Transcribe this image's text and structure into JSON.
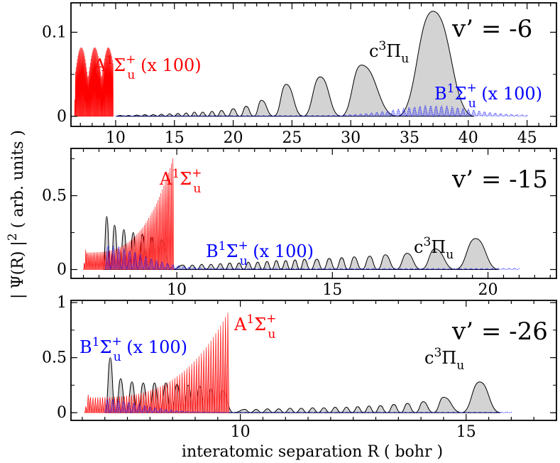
{
  "chart_data": {
    "type": "line",
    "xlabel": "interatomic separation R   ( bohr )",
    "ylabel": "| Ψ(R) |² ( arb. units )",
    "ylabel_parts": {
      "left": "| Ψ(R) |",
      "sup": "2",
      "right": " ( arb. units )"
    },
    "colors": {
      "c": "#000000",
      "cfill": "#d3d3d3",
      "A": "#ff0000",
      "B": "#0000ff"
    },
    "panels": [
      {
        "label": "v’ =  -6",
        "xlim": [
          6.2,
          47.5
        ],
        "ylim": [
          -0.012,
          0.135
        ],
        "xticks": [
          10,
          15,
          20,
          25,
          30,
          35,
          40,
          45
        ],
        "yticks": [
          0,
          0.1
        ],
        "ytick_labels": [
          "0",
          "0.1"
        ],
        "c_peaks": [
          [
            10.4,
            0.001
          ],
          [
            11.1,
            0.001
          ],
          [
            11.8,
            0.0015
          ],
          [
            12.5,
            0.002
          ],
          [
            13.2,
            0.002
          ],
          [
            13.9,
            0.0025
          ],
          [
            14.6,
            0.003
          ],
          [
            15.3,
            0.0035
          ],
          [
            16.0,
            0.004
          ],
          [
            16.7,
            0.005
          ],
          [
            17.4,
            0.005
          ],
          [
            18.2,
            0.006
          ],
          [
            19.0,
            0.007
          ],
          [
            20.0,
            0.009
          ],
          [
            21.1,
            0.012
          ],
          [
            22.4,
            0.019
          ],
          [
            24.5,
            0.038
          ],
          [
            27.4,
            0.047
          ],
          [
            30.9,
            0.061
          ],
          [
            37.0,
            0.125
          ]
        ],
        "A_range": [
          6.5,
          9.8
        ],
        "A_max": 0.082,
        "B_range": [
          10,
          45
        ],
        "B_max": 0.012,
        "annotations": {
          "c": {
            "base": "c",
            "sup": "3",
            "main": "Π",
            "sub": "u",
            "suffix": ""
          },
          "A": {
            "base": "A",
            "sup": "1",
            "main": "Σ",
            "sub": "u",
            "plus": "+",
            "suffix": " (x 100)"
          },
          "B": {
            "base": "B",
            "sup": "1",
            "main": "Σ",
            "sub": "u",
            "plus": "+",
            "suffix": " (x 100)"
          }
        }
      },
      {
        "label": "v’ =  -15",
        "xlim": [
          6.6,
          22.2
        ],
        "ylim": [
          -0.06,
          0.82
        ],
        "xticks": [
          10,
          15,
          20
        ],
        "yticks": [
          0,
          0.5
        ],
        "ytick_labels": [
          "0",
          "0.5"
        ],
        "c_peaks": [
          [
            7.75,
            0.36
          ],
          [
            8.0,
            0.3
          ],
          [
            8.3,
            0.27
          ],
          [
            8.6,
            0.25
          ],
          [
            8.9,
            0.24
          ],
          [
            9.2,
            0.22
          ],
          [
            9.5,
            0.2
          ],
          [
            10.2,
            0.03
          ],
          [
            10.5,
            0.03
          ],
          [
            10.8,
            0.035
          ],
          [
            11.1,
            0.035
          ],
          [
            11.4,
            0.04
          ],
          [
            11.7,
            0.045
          ],
          [
            12.0,
            0.045
          ],
          [
            12.3,
            0.05
          ],
          [
            12.6,
            0.05
          ],
          [
            12.9,
            0.055
          ],
          [
            13.2,
            0.06
          ],
          [
            13.5,
            0.06
          ],
          [
            13.8,
            0.065
          ],
          [
            14.1,
            0.07
          ],
          [
            14.5,
            0.07
          ],
          [
            14.9,
            0.075
          ],
          [
            15.3,
            0.08
          ],
          [
            15.7,
            0.085
          ],
          [
            16.2,
            0.09
          ],
          [
            16.7,
            0.1
          ],
          [
            17.4,
            0.11
          ],
          [
            18.3,
            0.14
          ],
          [
            19.6,
            0.21
          ]
        ],
        "A_range": [
          7.0,
          9.9
        ],
        "A_max": 0.77,
        "B_range": [
          7.7,
          21
        ],
        "B_max": 0.16,
        "annotations": {
          "c": {
            "base": "c",
            "sup": "3",
            "main": "Π",
            "sub": "u",
            "suffix": ""
          },
          "A": {
            "base": "A",
            "sup": "1",
            "main": "Σ",
            "sub": "u",
            "plus": "+",
            "suffix": ""
          },
          "B": {
            "base": "B",
            "sup": "1",
            "main": "Σ",
            "sub": "u",
            "plus": "+",
            "suffix": " (x 100)"
          }
        }
      },
      {
        "label": "v’ =  -26",
        "xlim": [
          6.25,
          17.0
        ],
        "ylim": [
          -0.07,
          1.02
        ],
        "xticks": [
          10,
          15
        ],
        "yticks": [
          0,
          0.5,
          1
        ],
        "ytick_labels": [
          "0",
          "0.5",
          "1"
        ],
        "c_peaks": [
          [
            7.12,
            0.5
          ],
          [
            7.35,
            0.31
          ],
          [
            7.6,
            0.28
          ],
          [
            7.85,
            0.27
          ],
          [
            8.1,
            0.27
          ],
          [
            8.35,
            0.27
          ],
          [
            8.6,
            0.26
          ],
          [
            8.85,
            0.25
          ],
          [
            9.1,
            0.24
          ],
          [
            9.35,
            0.22
          ],
          [
            9.6,
            0.2
          ],
          [
            10.1,
            0.03
          ],
          [
            10.35,
            0.03
          ],
          [
            10.6,
            0.035
          ],
          [
            10.85,
            0.035
          ],
          [
            11.1,
            0.04
          ],
          [
            11.35,
            0.04
          ],
          [
            11.6,
            0.045
          ],
          [
            11.85,
            0.045
          ],
          [
            12.1,
            0.05
          ],
          [
            12.35,
            0.05
          ],
          [
            12.6,
            0.055
          ],
          [
            12.85,
            0.06
          ],
          [
            13.1,
            0.065
          ],
          [
            13.4,
            0.075
          ],
          [
            13.7,
            0.085
          ],
          [
            14.05,
            0.1
          ],
          [
            14.5,
            0.14
          ],
          [
            15.3,
            0.28
          ]
        ],
        "A_range": [
          6.55,
          9.75
        ],
        "A_max": 0.93,
        "B_range": [
          7.0,
          16
        ],
        "B_max": 0.12,
        "annotations": {
          "c": {
            "base": "c",
            "sup": "3",
            "main": "Π",
            "sub": "u",
            "suffix": ""
          },
          "A": {
            "base": "A",
            "sup": "1",
            "main": "Σ",
            "sub": "u",
            "plus": "+",
            "suffix": ""
          },
          "B": {
            "base": "B",
            "sup": "1",
            "main": "Σ",
            "sub": "u",
            "plus": "+",
            "suffix": " (x 100)"
          }
        }
      }
    ]
  }
}
